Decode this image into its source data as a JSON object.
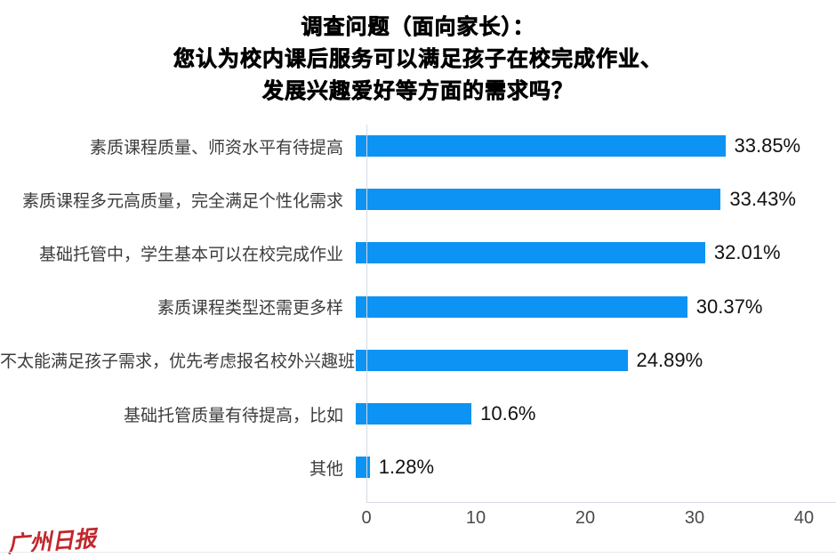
{
  "title": {
    "line1": "调查问题（面向家长）：",
    "line2": "您认为校内课后服务可以满足孩子在校完成作业、",
    "line3": "发展兴趣爱好等方面的需求吗？"
  },
  "chart_data": {
    "type": "bar",
    "orientation": "horizontal",
    "title": "调查问题（面向家长）：您认为校内课后服务可以满足孩子在校完成作业、发展兴趣爱好等方面的需求吗？",
    "categories": [
      "素质课程质量、师资水平有待提高",
      "素质课程多元高质量，完全满足个性化需求",
      "基础托管中，学生基本可以在校完成作业",
      "素质课程类型还需更多样",
      "不太能满足孩子需求，优先考虑报名校外兴趣班",
      "基础托管质量有待提高，比如",
      "其他"
    ],
    "values": [
      33.85,
      33.43,
      32.01,
      30.37,
      24.89,
      10.6,
      1.28
    ],
    "value_labels": [
      "33.85%",
      "33.43%",
      "32.01%",
      "30.37%",
      "24.89%",
      "10.6%",
      "1.28%"
    ],
    "xlabel": "",
    "ylabel": "",
    "xlim": [
      0,
      40
    ],
    "x_ticks": [
      0,
      10,
      20,
      30,
      40
    ],
    "grid": false,
    "legend": false,
    "bar_color": "#0d93f3"
  },
  "footer": {
    "logo_text": "广州日报"
  },
  "colors": {
    "bar": "#0d93f3",
    "axis_line": "#d5dbe5",
    "category_text": "#3c3c3c",
    "value_text": "#111111",
    "tick_text": "#4a4a4a",
    "logo_red": "#c1272d",
    "background": "#ffffff"
  }
}
